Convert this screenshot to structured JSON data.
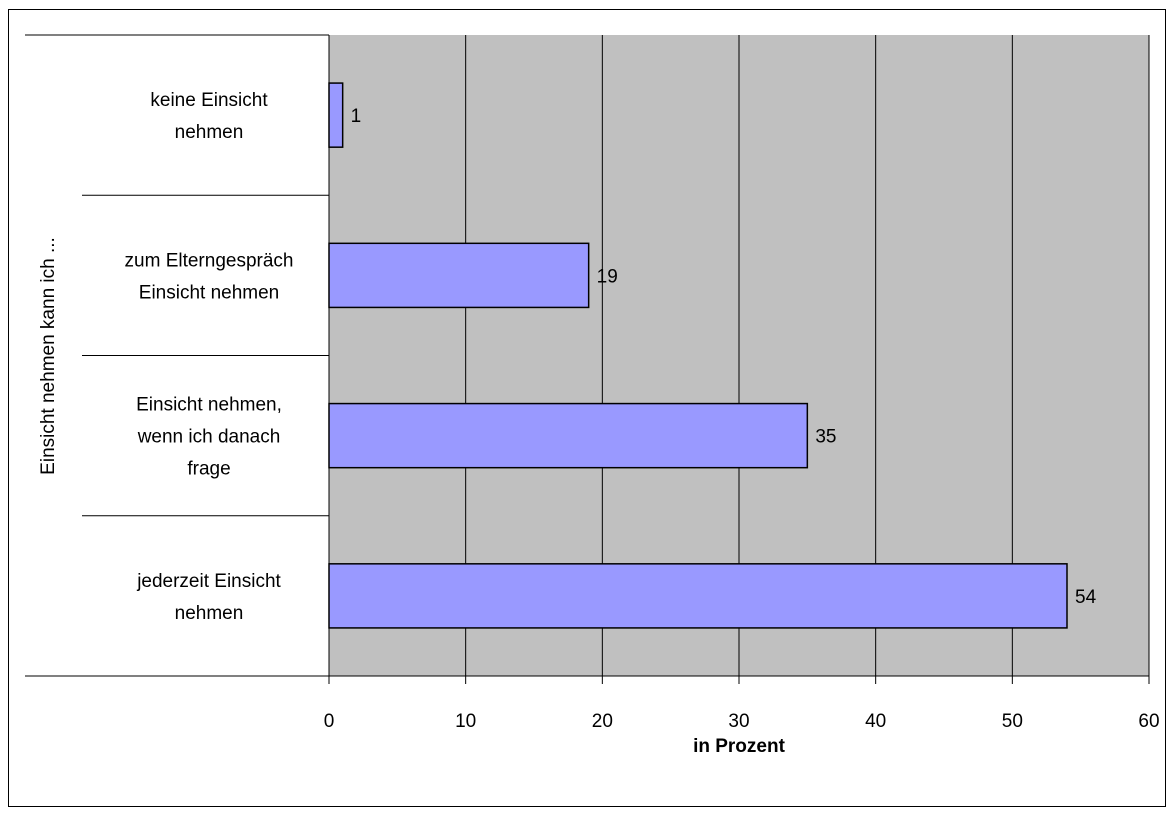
{
  "chart_data": {
    "type": "bar",
    "orientation": "horizontal",
    "categories": [
      [
        "keine Einsicht",
        "nehmen"
      ],
      [
        "zum Elterngespräch",
        "Einsicht nehmen"
      ],
      [
        "Einsicht nehmen,",
        "wenn ich danach",
        "frage"
      ],
      [
        "jederzeit Einsicht",
        "nehmen"
      ]
    ],
    "values": [
      1,
      19,
      35,
      54
    ],
    "data_labels": [
      "1",
      "19",
      "35",
      "54"
    ],
    "xlabel": "in Prozent",
    "ylabel": "Einsicht nehmen kann ich ...",
    "xlim": [
      0,
      60
    ],
    "xticks": [
      "0",
      "10",
      "20",
      "30",
      "40",
      "50",
      "60"
    ],
    "grid": true,
    "legend": "none",
    "colors": {
      "bar": "#9999ff",
      "plot_background": "#c0c0c0",
      "gridline": "#000000",
      "bar_border": "#000000"
    }
  }
}
